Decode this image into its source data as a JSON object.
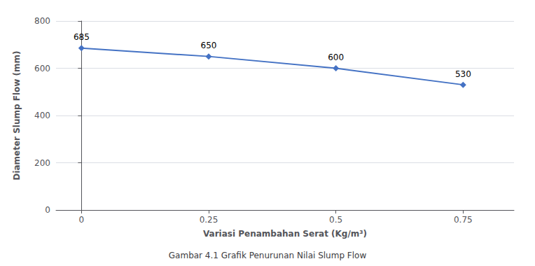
{
  "chart_data": {
    "type": "line",
    "title": "Gambar 4.1 Grafik Penurunan Nilai Slump Flow",
    "xlabel": "Variasi Penambahan Serat (Kg/m³)",
    "ylabel": "Diameter Slump Flow (mm)",
    "x": [
      0,
      0.25,
      0.5,
      0.75
    ],
    "values": [
      685,
      650,
      600,
      530
    ],
    "color": "#4472C4",
    "marker": "diamond",
    "data_labels": true,
    "xlim": [
      -0.05,
      0.85
    ],
    "xticks": [
      0,
      0.25,
      0.5,
      0.75
    ],
    "ylim": [
      0,
      800
    ],
    "yticks": [
      0,
      200,
      400,
      600,
      800
    ],
    "grid": "y"
  }
}
